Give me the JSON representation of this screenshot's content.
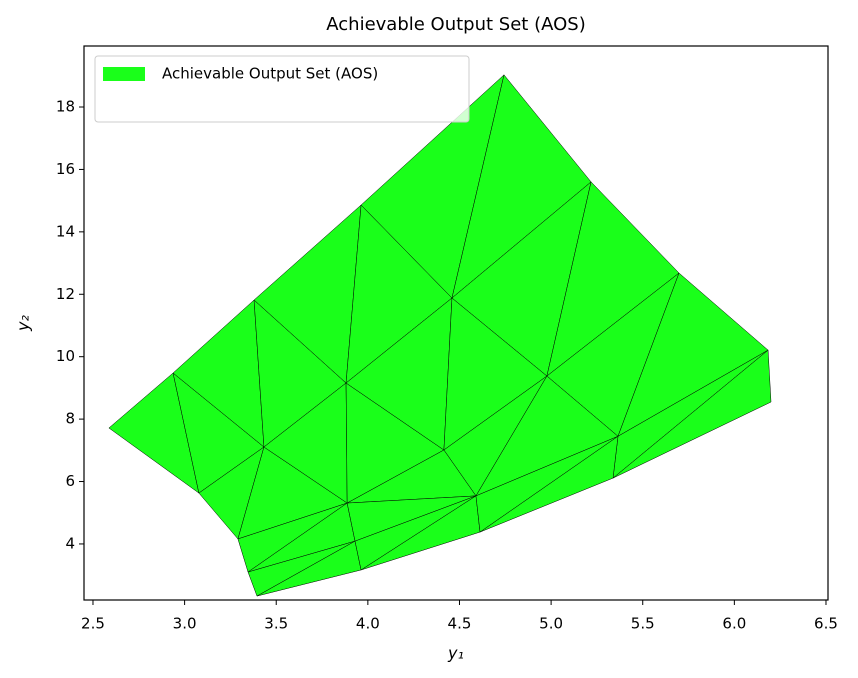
{
  "chart_data": {
    "type": "trimesh",
    "title": "Achievable Output Set (AOS)",
    "x_label": "y₁",
    "y_label": "y₂",
    "series": [
      {
        "name": "Achievable Output Set (AOS)",
        "color": "#1aff1a",
        "x": [
          2.587,
          2.937,
          3.379,
          3.963,
          4.743,
          5.218,
          5.698,
          6.184,
          6.2,
          5.338,
          4.612,
          3.963,
          3.395,
          3.346,
          3.291,
          3.078,
          3.433,
          3.881,
          4.459,
          4.977,
          4.415,
          3.887,
          5.365,
          4.59,
          3.93
        ],
        "y": [
          7.715,
          9.477,
          11.816,
          14.86,
          19.03,
          15.6,
          12.68,
          10.21,
          8.548,
          6.11,
          4.38,
          3.166,
          2.33,
          3.1,
          4.16,
          5.63,
          7.106,
          9.157,
          11.88,
          9.38,
          7.01,
          5.31,
          7.45,
          5.54,
          4.09
        ],
        "triangles": [
          [
            0,
            1,
            15
          ],
          [
            1,
            16,
            15
          ],
          [
            1,
            2,
            16
          ],
          [
            2,
            17,
            16
          ],
          [
            2,
            3,
            17
          ],
          [
            3,
            18,
            17
          ],
          [
            3,
            4,
            18
          ],
          [
            4,
            5,
            18
          ],
          [
            5,
            19,
            18
          ],
          [
            5,
            6,
            19
          ],
          [
            6,
            22,
            19
          ],
          [
            6,
            7,
            22
          ],
          [
            7,
            9,
            22
          ],
          [
            7,
            8,
            9
          ],
          [
            15,
            16,
            14
          ],
          [
            14,
            16,
            21
          ],
          [
            16,
            17,
            21
          ],
          [
            17,
            20,
            21
          ],
          [
            17,
            18,
            20
          ],
          [
            18,
            19,
            20
          ],
          [
            20,
            19,
            23
          ],
          [
            19,
            22,
            23
          ],
          [
            20,
            23,
            21
          ],
          [
            14,
            21,
            13
          ],
          [
            13,
            21,
            24
          ],
          [
            21,
            23,
            24
          ],
          [
            13,
            24,
            12
          ],
          [
            12,
            24,
            11
          ],
          [
            24,
            23,
            11
          ],
          [
            11,
            23,
            10
          ],
          [
            23,
            22,
            10
          ],
          [
            10,
            22,
            9
          ]
        ]
      }
    ],
    "xlim": [
      2.451,
      6.511
    ],
    "ylim": [
      2.204,
      19.955
    ],
    "xticks": [
      2.5,
      {
        "value": 3,
        "label": "3.0"
      },
      3.5,
      {
        "value": 4,
        "label": "4.0"
      },
      4.5,
      {
        "value": 5,
        "label": "5.0"
      },
      5.5,
      {
        "value": 6,
        "label": "6.0"
      },
      6.5
    ],
    "yticks": [
      4,
      6,
      8,
      10,
      12,
      14,
      16,
      18
    ],
    "legend": "upper left"
  }
}
